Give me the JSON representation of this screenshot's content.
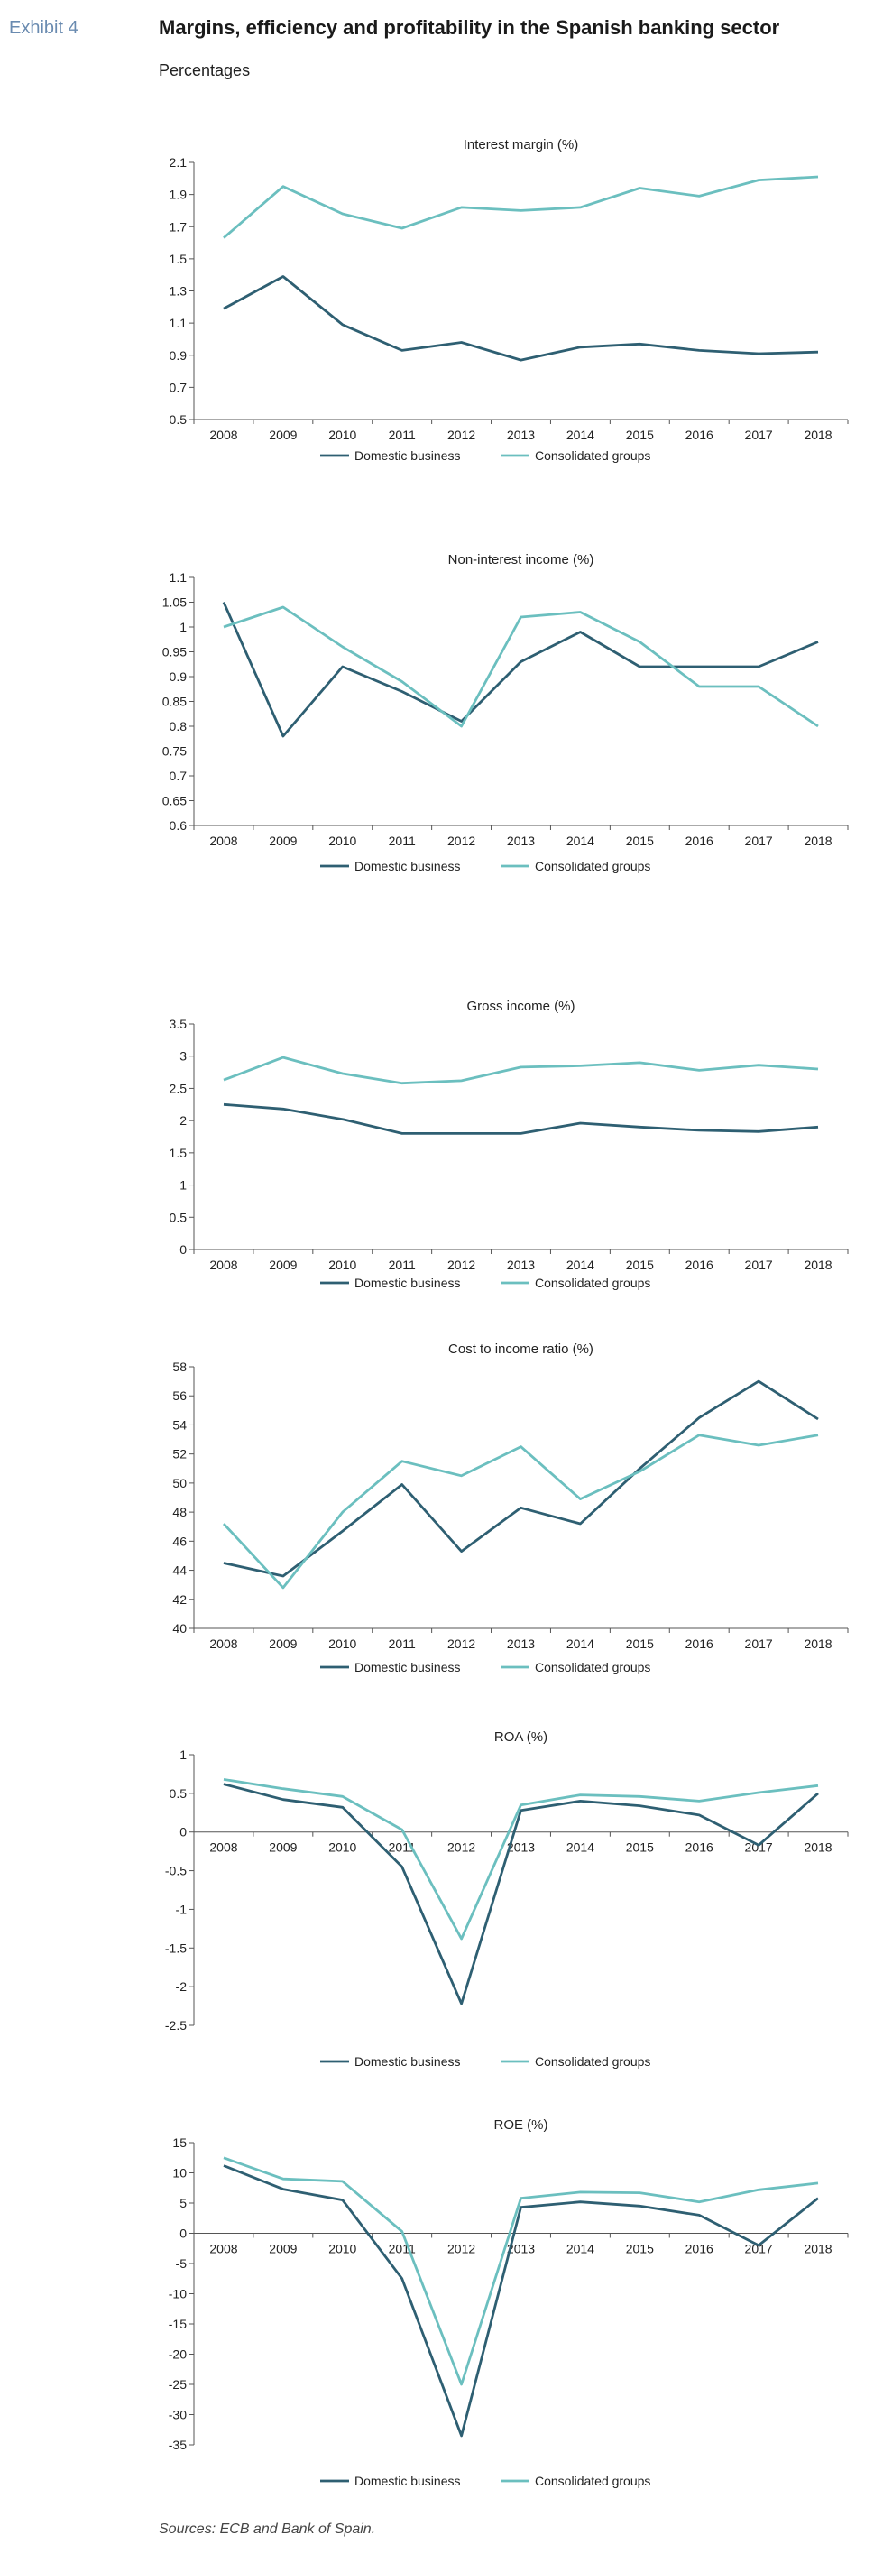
{
  "header": {
    "exhibit": "Exhibit 4",
    "title": "Margins, efficiency and profitability in the Spanish banking sector",
    "subtitle": "Percentages"
  },
  "source": "Sources: ECB and Bank of Spain.",
  "colors": {
    "domestic": "#2e5f72",
    "consolidated": "#6bbfbf",
    "axis": "#555555"
  },
  "chart_data": [
    {
      "type": "line",
      "title": "Interest margin (%)",
      "x": [
        "2008",
        "2009",
        "2010",
        "2011",
        "2012",
        "2013",
        "2014",
        "2015",
        "2016",
        "2017",
        "2018"
      ],
      "ylim": [
        0.5,
        2.1
      ],
      "yticks": [
        0.5,
        0.7,
        0.9,
        1.1,
        1.3,
        1.5,
        1.7,
        1.9,
        2.1
      ],
      "ytick_labels": [
        "0.5",
        "0.7",
        "0.9",
        "1.1",
        "1.3",
        "1.5",
        "1.7",
        "1.9",
        "2.1"
      ],
      "grid": false,
      "legend": "bottom",
      "series": [
        {
          "name": "Domestic business",
          "values": [
            1.19,
            1.39,
            1.09,
            0.93,
            0.98,
            0.87,
            0.95,
            0.97,
            0.93,
            0.91,
            0.92
          ]
        },
        {
          "name": "Consolidated groups",
          "values": [
            1.63,
            1.95,
            1.78,
            1.69,
            1.82,
            1.8,
            1.82,
            1.94,
            1.89,
            1.99,
            2.01
          ]
        }
      ]
    },
    {
      "type": "line",
      "title": "Non-interest income (%)",
      "x": [
        "2008",
        "2009",
        "2010",
        "2011",
        "2012",
        "2013",
        "2014",
        "2015",
        "2016",
        "2017",
        "2018"
      ],
      "ylim": [
        0.6,
        1.1
      ],
      "yticks": [
        0.6,
        0.65,
        0.7,
        0.75,
        0.8,
        0.85,
        0.9,
        0.95,
        1,
        1.05,
        1.1
      ],
      "ytick_labels": [
        "0.6",
        "0.65",
        "0.7",
        "0.75",
        "0.8",
        "0.85",
        "0.9",
        "0.95",
        "1",
        "1.05",
        "1.1"
      ],
      "grid": false,
      "legend": "bottom",
      "series": [
        {
          "name": "Domestic business",
          "values": [
            1.05,
            0.78,
            0.92,
            0.87,
            0.81,
            0.93,
            0.99,
            0.92,
            0.92,
            0.92,
            0.97
          ]
        },
        {
          "name": "Consolidated groups",
          "values": [
            1.0,
            1.04,
            0.96,
            0.89,
            0.8,
            1.02,
            1.03,
            0.97,
            0.88,
            0.88,
            0.8
          ]
        }
      ]
    },
    {
      "type": "line",
      "title": "Gross income (%)",
      "x": [
        "2008",
        "2009",
        "2010",
        "2011",
        "2012",
        "2013",
        "2014",
        "2015",
        "2016",
        "2017",
        "2018"
      ],
      "ylim": [
        0,
        3.5
      ],
      "yticks": [
        0,
        0.5,
        1,
        1.5,
        2,
        2.5,
        3,
        3.5
      ],
      "ytick_labels": [
        "0",
        "0.5",
        "1",
        "1.5",
        "2",
        "2.5",
        "3",
        "3.5"
      ],
      "grid": false,
      "legend": "bottom",
      "series": [
        {
          "name": "Domestic business",
          "values": [
            2.25,
            2.18,
            2.02,
            1.8,
            1.8,
            1.8,
            1.96,
            1.9,
            1.85,
            1.83,
            1.9
          ]
        },
        {
          "name": "Consolidated groups",
          "values": [
            2.63,
            2.98,
            2.73,
            2.58,
            2.62,
            2.83,
            2.85,
            2.9,
            2.78,
            2.86,
            2.8
          ]
        }
      ]
    },
    {
      "type": "line",
      "title": "Cost to income ratio (%)",
      "x": [
        "2008",
        "2009",
        "2010",
        "2011",
        "2012",
        "2013",
        "2014",
        "2015",
        "2016",
        "2017",
        "2018"
      ],
      "ylim": [
        40,
        58
      ],
      "yticks": [
        40,
        42,
        44,
        46,
        48,
        50,
        52,
        54,
        56,
        58
      ],
      "ytick_labels": [
        "40",
        "42",
        "44",
        "46",
        "48",
        "50",
        "52",
        "54",
        "56",
        "58"
      ],
      "grid": false,
      "legend": "bottom",
      "series": [
        {
          "name": "Domestic business",
          "values": [
            44.5,
            43.6,
            46.7,
            49.9,
            45.3,
            48.3,
            47.2,
            51.0,
            54.5,
            57.0,
            54.4
          ]
        },
        {
          "name": "Consolidated groups",
          "values": [
            47.2,
            42.8,
            48.0,
            51.5,
            50.5,
            52.5,
            48.9,
            50.8,
            53.3,
            52.6,
            53.3
          ]
        }
      ]
    },
    {
      "type": "line",
      "title": "ROA (%)",
      "x": [
        "2008",
        "2009",
        "2010",
        "2011",
        "2012",
        "2013",
        "2014",
        "2015",
        "2016",
        "2017",
        "2018"
      ],
      "ylim": [
        -2.5,
        1
      ],
      "yticks": [
        -2.5,
        -2,
        -1.5,
        -1,
        -0.5,
        0,
        0.5,
        1
      ],
      "ytick_labels": [
        "-2.5",
        "-2",
        "-1.5",
        "-1",
        "-0.5",
        "0",
        "0.5",
        "1"
      ],
      "grid": false,
      "legend": "bottom",
      "series": [
        {
          "name": "Domestic business",
          "values": [
            0.62,
            0.42,
            0.32,
            -0.45,
            -2.22,
            0.28,
            0.4,
            0.34,
            0.22,
            -0.17,
            0.5
          ]
        },
        {
          "name": "Consolidated groups",
          "values": [
            0.68,
            0.56,
            0.46,
            0.03,
            -1.38,
            0.35,
            0.48,
            0.46,
            0.4,
            0.51,
            0.6
          ]
        }
      ]
    },
    {
      "type": "line",
      "title": "ROE (%)",
      "x": [
        "2008",
        "2009",
        "2010",
        "2011",
        "2012",
        "2013",
        "2014",
        "2015",
        "2016",
        "2017",
        "2018"
      ],
      "ylim": [
        -35,
        15
      ],
      "yticks": [
        -35,
        -30,
        -25,
        -20,
        -15,
        -10,
        -5,
        0,
        5,
        10,
        15
      ],
      "ytick_labels": [
        "-35",
        "-30",
        "-25",
        "-20",
        "-15",
        "-10",
        "-5",
        "0",
        "5",
        "10",
        "15"
      ],
      "grid": false,
      "legend": "bottom",
      "series": [
        {
          "name": "Domestic business",
          "values": [
            11.2,
            7.3,
            5.5,
            -7.5,
            -33.5,
            4.3,
            5.2,
            4.5,
            3.0,
            -2.0,
            5.8
          ]
        },
        {
          "name": "Consolidated groups",
          "values": [
            12.5,
            9.0,
            8.6,
            0.3,
            -25.0,
            5.8,
            6.8,
            6.7,
            5.2,
            7.2,
            8.3
          ]
        }
      ]
    }
  ]
}
